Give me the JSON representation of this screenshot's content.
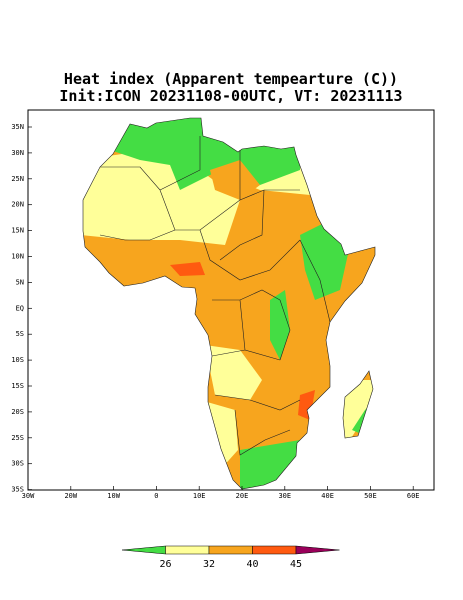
{
  "title": [
    "Heat index (Apparent tempearture (C))",
    "Init:ICON 20231108-00UTC, VT: 20231113"
  ],
  "map": {
    "lat_labels": [
      "35N",
      "30N",
      "25N",
      "20N",
      "15N",
      "10N",
      "5N",
      "EQ",
      "5S",
      "10S",
      "15S",
      "20S",
      "25S",
      "30S",
      "35S"
    ],
    "lon_labels": [
      "30W",
      "20W",
      "10W",
      "0",
      "10E",
      "20E",
      "30E",
      "40E",
      "50E",
      "60E"
    ]
  },
  "colorbar": {
    "labels": [
      26,
      32,
      40,
      45
    ],
    "colors": [
      "#44dd44",
      "#ffff99",
      "#f7a51e",
      "#ff5a10",
      "#99005a"
    ]
  }
}
